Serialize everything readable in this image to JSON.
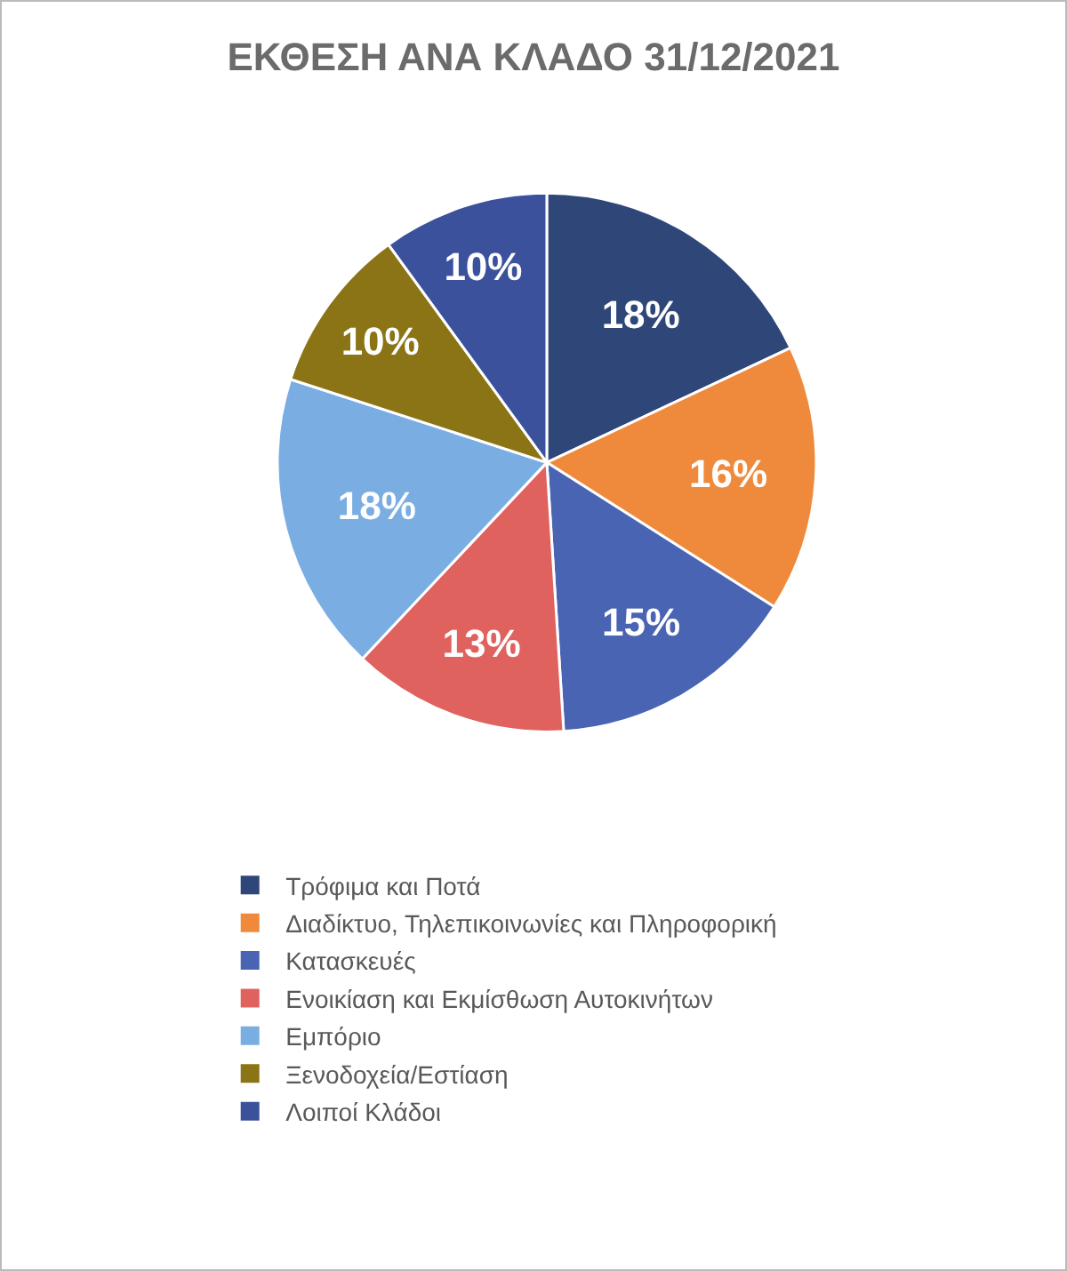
{
  "chart_data": {
    "type": "pie",
    "title": "ΕΚΘΕΣΗ ΑΝΑ ΚΛΑΔΟ 31/12/2021",
    "categories": [
      "Τρόφιμα και Ποτά",
      "Διαδίκτυο, Τηλεπικοινωνίες και Πληροφορική",
      "Κατασκευές",
      "Ενοικίαση και Εκμίσθωση Αυτοκινήτων",
      "Εμπόριο",
      "Ξενοδοχεία/Εστίαση",
      "Λοιποί Κλάδοι"
    ],
    "values": [
      18,
      16,
      15,
      13,
      18,
      10,
      10
    ],
    "value_labels": [
      "18%",
      "16%",
      "15%",
      "13%",
      "18%",
      "10%",
      "10%"
    ],
    "colors": [
      "#2f4778",
      "#ef8a3c",
      "#4a64b4",
      "#e0625f",
      "#7aaee3",
      "#8b7416",
      "#3b519c"
    ],
    "legend": "bottom"
  }
}
